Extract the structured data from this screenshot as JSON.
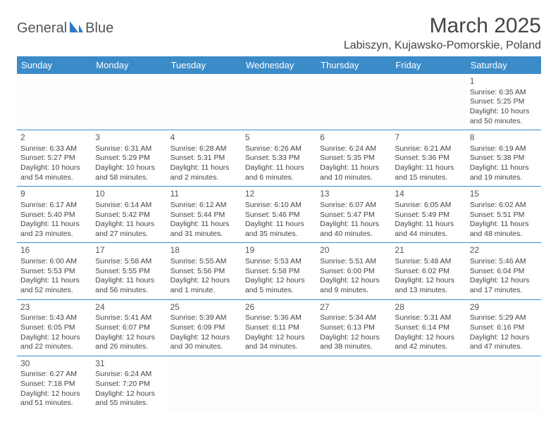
{
  "brand": {
    "part1": "General",
    "part2": "Blue"
  },
  "title": "March 2025",
  "location": "Labiszyn, Kujawsko-Pomorskie, Poland",
  "colors": {
    "header_bg": "#3b8bc9",
    "header_fg": "#ffffff",
    "border": "#3b8bc9",
    "text": "#444444",
    "logo_blue": "#2f79c4"
  },
  "weekdays": [
    "Sunday",
    "Monday",
    "Tuesday",
    "Wednesday",
    "Thursday",
    "Friday",
    "Saturday"
  ],
  "weeks": [
    [
      null,
      null,
      null,
      null,
      null,
      null,
      {
        "n": "1",
        "sr": "Sunrise: 6:35 AM",
        "ss": "Sunset: 5:25 PM",
        "d1": "Daylight: 10 hours",
        "d2": "and 50 minutes."
      }
    ],
    [
      {
        "n": "2",
        "sr": "Sunrise: 6:33 AM",
        "ss": "Sunset: 5:27 PM",
        "d1": "Daylight: 10 hours",
        "d2": "and 54 minutes."
      },
      {
        "n": "3",
        "sr": "Sunrise: 6:31 AM",
        "ss": "Sunset: 5:29 PM",
        "d1": "Daylight: 10 hours",
        "d2": "and 58 minutes."
      },
      {
        "n": "4",
        "sr": "Sunrise: 6:28 AM",
        "ss": "Sunset: 5:31 PM",
        "d1": "Daylight: 11 hours",
        "d2": "and 2 minutes."
      },
      {
        "n": "5",
        "sr": "Sunrise: 6:26 AM",
        "ss": "Sunset: 5:33 PM",
        "d1": "Daylight: 11 hours",
        "d2": "and 6 minutes."
      },
      {
        "n": "6",
        "sr": "Sunrise: 6:24 AM",
        "ss": "Sunset: 5:35 PM",
        "d1": "Daylight: 11 hours",
        "d2": "and 10 minutes."
      },
      {
        "n": "7",
        "sr": "Sunrise: 6:21 AM",
        "ss": "Sunset: 5:36 PM",
        "d1": "Daylight: 11 hours",
        "d2": "and 15 minutes."
      },
      {
        "n": "8",
        "sr": "Sunrise: 6:19 AM",
        "ss": "Sunset: 5:38 PM",
        "d1": "Daylight: 11 hours",
        "d2": "and 19 minutes."
      }
    ],
    [
      {
        "n": "9",
        "sr": "Sunrise: 6:17 AM",
        "ss": "Sunset: 5:40 PM",
        "d1": "Daylight: 11 hours",
        "d2": "and 23 minutes."
      },
      {
        "n": "10",
        "sr": "Sunrise: 6:14 AM",
        "ss": "Sunset: 5:42 PM",
        "d1": "Daylight: 11 hours",
        "d2": "and 27 minutes."
      },
      {
        "n": "11",
        "sr": "Sunrise: 6:12 AM",
        "ss": "Sunset: 5:44 PM",
        "d1": "Daylight: 11 hours",
        "d2": "and 31 minutes."
      },
      {
        "n": "12",
        "sr": "Sunrise: 6:10 AM",
        "ss": "Sunset: 5:46 PM",
        "d1": "Daylight: 11 hours",
        "d2": "and 35 minutes."
      },
      {
        "n": "13",
        "sr": "Sunrise: 6:07 AM",
        "ss": "Sunset: 5:47 PM",
        "d1": "Daylight: 11 hours",
        "d2": "and 40 minutes."
      },
      {
        "n": "14",
        "sr": "Sunrise: 6:05 AM",
        "ss": "Sunset: 5:49 PM",
        "d1": "Daylight: 11 hours",
        "d2": "and 44 minutes."
      },
      {
        "n": "15",
        "sr": "Sunrise: 6:02 AM",
        "ss": "Sunset: 5:51 PM",
        "d1": "Daylight: 11 hours",
        "d2": "and 48 minutes."
      }
    ],
    [
      {
        "n": "16",
        "sr": "Sunrise: 6:00 AM",
        "ss": "Sunset: 5:53 PM",
        "d1": "Daylight: 11 hours",
        "d2": "and 52 minutes."
      },
      {
        "n": "17",
        "sr": "Sunrise: 5:58 AM",
        "ss": "Sunset: 5:55 PM",
        "d1": "Daylight: 11 hours",
        "d2": "and 56 minutes."
      },
      {
        "n": "18",
        "sr": "Sunrise: 5:55 AM",
        "ss": "Sunset: 5:56 PM",
        "d1": "Daylight: 12 hours",
        "d2": "and 1 minute."
      },
      {
        "n": "19",
        "sr": "Sunrise: 5:53 AM",
        "ss": "Sunset: 5:58 PM",
        "d1": "Daylight: 12 hours",
        "d2": "and 5 minutes."
      },
      {
        "n": "20",
        "sr": "Sunrise: 5:51 AM",
        "ss": "Sunset: 6:00 PM",
        "d1": "Daylight: 12 hours",
        "d2": "and 9 minutes."
      },
      {
        "n": "21",
        "sr": "Sunrise: 5:48 AM",
        "ss": "Sunset: 6:02 PM",
        "d1": "Daylight: 12 hours",
        "d2": "and 13 minutes."
      },
      {
        "n": "22",
        "sr": "Sunrise: 5:46 AM",
        "ss": "Sunset: 6:04 PM",
        "d1": "Daylight: 12 hours",
        "d2": "and 17 minutes."
      }
    ],
    [
      {
        "n": "23",
        "sr": "Sunrise: 5:43 AM",
        "ss": "Sunset: 6:05 PM",
        "d1": "Daylight: 12 hours",
        "d2": "and 22 minutes."
      },
      {
        "n": "24",
        "sr": "Sunrise: 5:41 AM",
        "ss": "Sunset: 6:07 PM",
        "d1": "Daylight: 12 hours",
        "d2": "and 26 minutes."
      },
      {
        "n": "25",
        "sr": "Sunrise: 5:39 AM",
        "ss": "Sunset: 6:09 PM",
        "d1": "Daylight: 12 hours",
        "d2": "and 30 minutes."
      },
      {
        "n": "26",
        "sr": "Sunrise: 5:36 AM",
        "ss": "Sunset: 6:11 PM",
        "d1": "Daylight: 12 hours",
        "d2": "and 34 minutes."
      },
      {
        "n": "27",
        "sr": "Sunrise: 5:34 AM",
        "ss": "Sunset: 6:13 PM",
        "d1": "Daylight: 12 hours",
        "d2": "and 38 minutes."
      },
      {
        "n": "28",
        "sr": "Sunrise: 5:31 AM",
        "ss": "Sunset: 6:14 PM",
        "d1": "Daylight: 12 hours",
        "d2": "and 42 minutes."
      },
      {
        "n": "29",
        "sr": "Sunrise: 5:29 AM",
        "ss": "Sunset: 6:16 PM",
        "d1": "Daylight: 12 hours",
        "d2": "and 47 minutes."
      }
    ],
    [
      {
        "n": "30",
        "sr": "Sunrise: 6:27 AM",
        "ss": "Sunset: 7:18 PM",
        "d1": "Daylight: 12 hours",
        "d2": "and 51 minutes."
      },
      {
        "n": "31",
        "sr": "Sunrise: 6:24 AM",
        "ss": "Sunset: 7:20 PM",
        "d1": "Daylight: 12 hours",
        "d2": "and 55 minutes."
      },
      null,
      null,
      null,
      null,
      null
    ]
  ]
}
